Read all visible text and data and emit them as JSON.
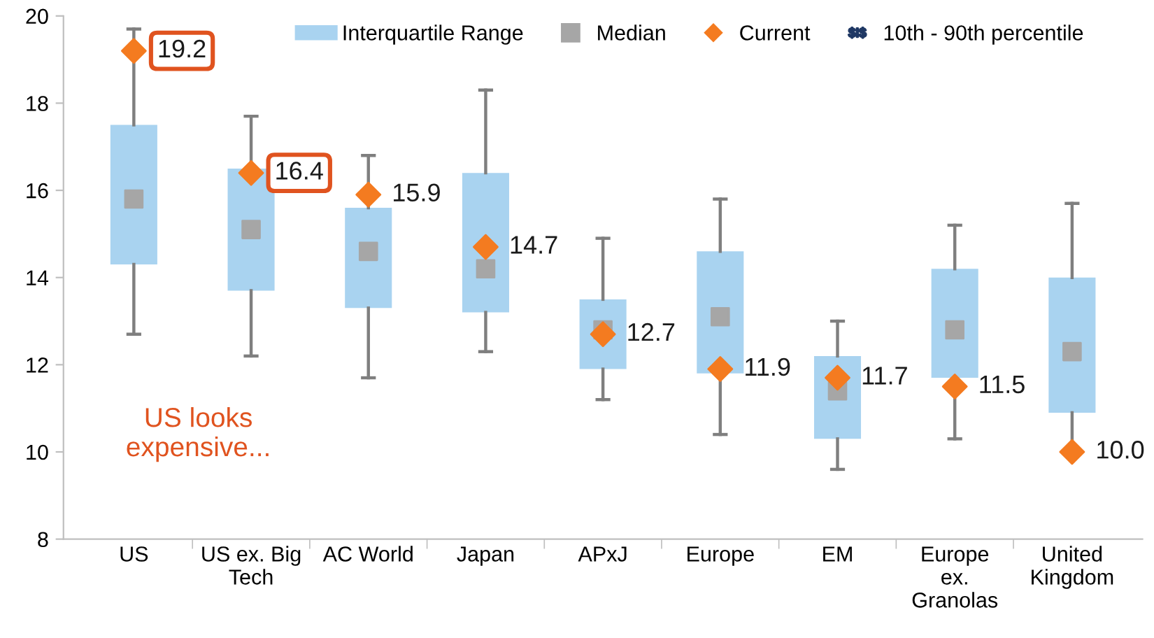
{
  "chart_data": {
    "type": "box",
    "categories": [
      "US",
      "US ex. Big\nTech",
      "AC World",
      "Japan",
      "APxJ",
      "Europe",
      "EM",
      "Europe\nex.\nGranolas",
      "United\nKingdom"
    ],
    "series": [
      {
        "name": "Interquartile Range",
        "color": "#a9d3f0",
        "boxes": [
          {
            "low": 12.7,
            "q1": 14.3,
            "median": 15.8,
            "q3": 17.5,
            "high": 19.7
          },
          {
            "low": 12.2,
            "q1": 13.7,
            "median": 15.1,
            "q3": 16.5,
            "high": 17.7
          },
          {
            "low": 11.7,
            "q1": 13.3,
            "median": 14.6,
            "q3": 15.6,
            "high": 16.8
          },
          {
            "low": 12.3,
            "q1": 13.2,
            "median": 14.2,
            "q3": 16.4,
            "high": 18.3
          },
          {
            "low": 11.2,
            "q1": 11.9,
            "median": 12.8,
            "q3": 13.5,
            "high": 14.9
          },
          {
            "low": 10.4,
            "q1": 11.8,
            "median": 13.1,
            "q3": 14.6,
            "high": 15.8
          },
          {
            "low": 9.6,
            "q1": 10.3,
            "median": 11.4,
            "q3": 12.2,
            "high": 13.0
          },
          {
            "low": 10.3,
            "q1": 11.7,
            "median": 12.8,
            "q3": 14.2,
            "high": 15.2
          },
          {
            "low": 10.0,
            "q1": 10.9,
            "median": 12.3,
            "q3": 14.0,
            "high": 15.7
          }
        ]
      },
      {
        "name": "Current",
        "type": "scatter",
        "color": "#f47b20",
        "marker": "diamond",
        "x": [
          "US",
          "US ex. Big\nTech",
          "AC World",
          "Japan",
          "APxJ",
          "Europe",
          "EM",
          "Europe\nex.\nGranolas",
          "United\nKingdom"
        ],
        "values": [
          19.2,
          16.4,
          15.9,
          14.7,
          12.7,
          11.9,
          11.7,
          11.5,
          10.0
        ],
        "value_labels": [
          "19.2",
          "16.4",
          "15.9",
          "14.7",
          "12.7",
          "11.9",
          "11.7",
          "11.5",
          "10.0"
        ]
      }
    ],
    "ylim": [
      8,
      20
    ],
    "yticks": [
      8,
      10,
      12,
      14,
      16,
      18,
      20
    ],
    "grid": false,
    "legend": "top",
    "annotations": [
      "Median",
      "10th - 90th percentile",
      "US looks\nexpensive..."
    ]
  }
}
